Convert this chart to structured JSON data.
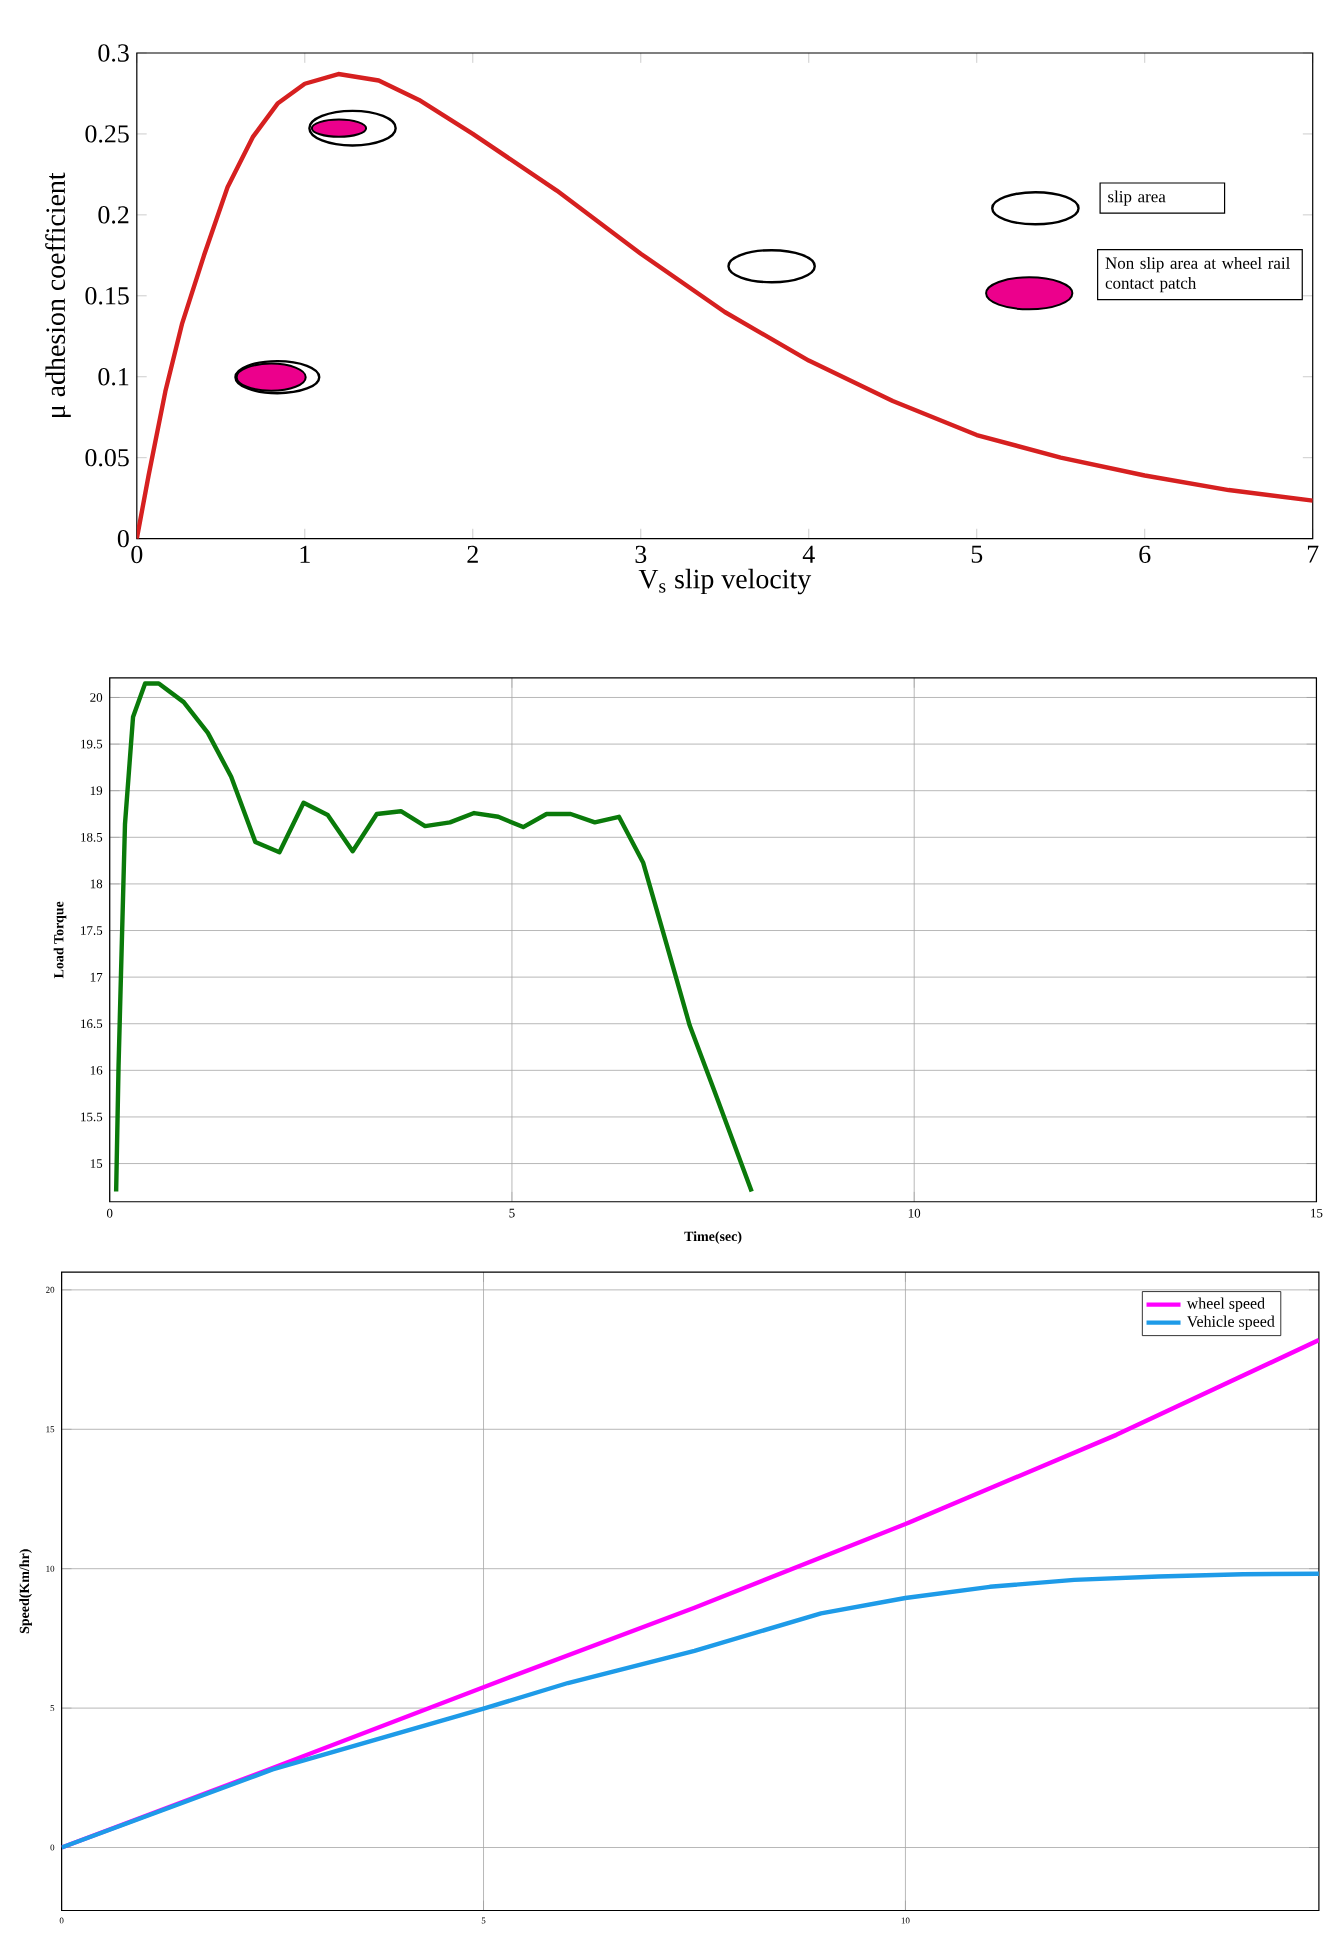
{
  "chart_data": [
    {
      "type": "line",
      "xlabel": "V$_{s}$ slip velocity",
      "ylabel": "μ adhesion coefficient",
      "x": [
        0,
        0.07,
        0.17,
        0.27,
        0.4,
        0.54,
        0.69,
        0.84,
        1.0,
        1.2,
        1.44,
        1.68,
        2.0,
        2.5,
        3.0,
        3.5,
        4.0,
        4.5,
        5.0,
        5.5,
        6.0,
        6.5,
        7.0
      ],
      "series": [
        {
          "color": "#d62020",
          "values": [
            0,
            0.039,
            0.091,
            0.133,
            0.175,
            0.217,
            0.248,
            0.269,
            0.281,
            0.287,
            0.283,
            0.271,
            0.25,
            0.215,
            0.176,
            0.14,
            0.11,
            0.085,
            0.064,
            0.05,
            0.039,
            0.03,
            0.0235
          ]
        }
      ],
      "xlim": [
        0,
        7
      ],
      "xticks": [
        0,
        1,
        2,
        3,
        4,
        5,
        6,
        7
      ],
      "ylim": [
        0,
        0.3
      ],
      "yticks": [
        0,
        0.05,
        0.1,
        0.15,
        0.2,
        0.25,
        0.3
      ],
      "grid": false,
      "line_style": "solid",
      "annotations": [
        "slip area",
        "Non slip area at wheel rail contact patch"
      ]
    },
    {
      "type": "line",
      "xlabel": "Time(sec)",
      "ylabel": "Load Torque",
      "x": [
        0.08,
        0.11,
        0.19,
        0.29,
        0.44,
        0.61,
        0.92,
        1.22,
        1.51,
        1.81,
        2.11,
        2.41,
        2.71,
        3.02,
        3.32,
        3.62,
        3.92,
        4.23,
        4.53,
        4.83,
        5.14,
        5.43,
        5.73,
        6.03,
        6.33,
        6.63,
        6.92,
        7.21,
        7.52,
        7.98
      ],
      "series": [
        {
          "color": "#0a7a0a",
          "values": [
            14.7,
            16.05,
            18.64,
            19.79,
            20.15,
            20.15,
            19.95,
            19.62,
            19.15,
            18.45,
            18.34,
            18.87,
            18.74,
            18.35,
            18.75,
            18.78,
            18.62,
            18.66,
            18.76,
            18.72,
            18.61,
            18.75,
            18.75,
            18.66,
            18.72,
            18.23,
            17.36,
            16.48,
            15.77,
            14.7
          ]
        }
      ],
      "xlim": [
        0,
        15
      ],
      "xticks": [
        0,
        5,
        10,
        15
      ],
      "ylim": [
        14.59,
        20.21
      ],
      "yticks": [
        15,
        15.5,
        16,
        16.5,
        17,
        17.5,
        18,
        18.5,
        19,
        19.5,
        20
      ],
      "grid": true,
      "line_style": "solid"
    },
    {
      "type": "line",
      "ylabel": "Speed(Km/hr)",
      "series": [
        {
          "name": "wheel speed",
          "color": "#ff00ff",
          "x": [
            0,
            2.5,
            5,
            7.5,
            10,
            12.5,
            14.9
          ],
          "values": [
            0,
            2.85,
            5.75,
            8.6,
            11.6,
            14.8,
            18.2
          ]
        },
        {
          "name": "Vehicle speed",
          "color": "#1e9be8",
          "x": [
            0,
            2.5,
            5,
            6,
            7.5,
            9,
            10,
            11,
            12,
            13,
            14,
            14.9
          ],
          "values": [
            0,
            2.8,
            4.98,
            5.9,
            7.05,
            8.4,
            8.95,
            9.35,
            9.6,
            9.72,
            9.8,
            9.82
          ]
        }
      ],
      "xlim": [
        0,
        14.9
      ],
      "xticks": [
        0,
        5,
        10
      ],
      "ylim": [
        -2.26,
        20.64
      ],
      "yticks": [
        0,
        5,
        10,
        15,
        20
      ],
      "grid": true,
      "legend": "top right",
      "line_style": "solid"
    }
  ]
}
